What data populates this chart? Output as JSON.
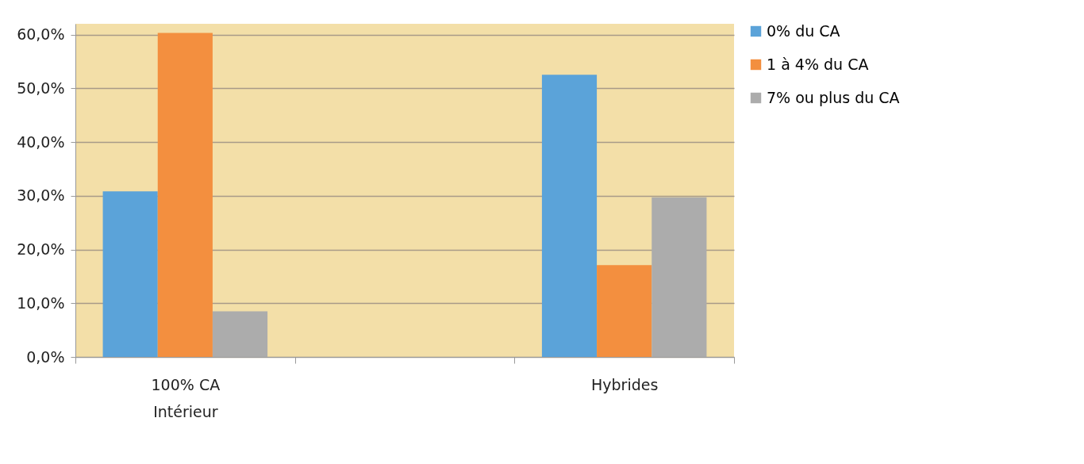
{
  "chart_data": {
    "type": "bar",
    "categories": [
      "100% CA\nIntérieur",
      null,
      "Hybrides"
    ],
    "series": [
      {
        "name": "0% du CA",
        "color": "#5ba3d9",
        "values": [
          30.8,
          null,
          52.5
        ]
      },
      {
        "name": "1 à 4% du CA",
        "color": "#f38f3f",
        "values": [
          60.3,
          null,
          17.1
        ]
      },
      {
        "name": "7% ou plus du CA",
        "color": "#acacac",
        "values": [
          8.5,
          null,
          29.7
        ]
      }
    ],
    "ylim": [
      0,
      62
    ],
    "yticks": [
      {
        "value": 0,
        "label": "0,0%"
      },
      {
        "value": 10,
        "label": "10,0%"
      },
      {
        "value": 20,
        "label": "20,0%"
      },
      {
        "value": 30,
        "label": "30,0%"
      },
      {
        "value": 40,
        "label": "40,0%"
      },
      {
        "value": 50,
        "label": "50,0%"
      },
      {
        "value": 60,
        "label": "60,0%"
      }
    ],
    "grid": "y",
    "legend": "right"
  }
}
